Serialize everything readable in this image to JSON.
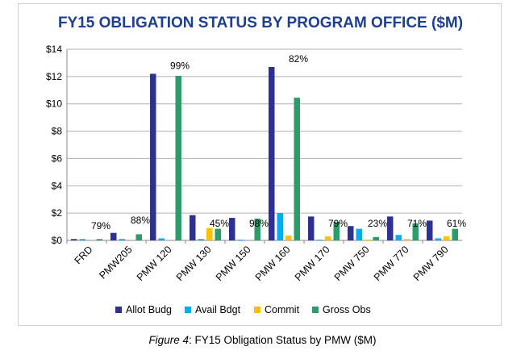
{
  "caption": {
    "figure": "Figure 4",
    "text": ": FY15 Obligation Status by PMW ($M)"
  },
  "colors": {
    "title": "#1f3f8f",
    "series": [
      "#2e3192",
      "#00aeef",
      "#ffc000",
      "#2e9c6a"
    ],
    "grid": "#b0b0b0"
  },
  "chart_data": {
    "type": "bar",
    "title": "FY15 OBLIGATION STATUS BY PROGRAM OFFICE  ($M)",
    "xlabel": "",
    "ylabel": "",
    "ylim": [
      0,
      14
    ],
    "y_ticks": [
      0,
      2,
      4,
      6,
      8,
      10,
      12,
      14
    ],
    "y_tick_labels": [
      "$0",
      "$2",
      "$4",
      "$6",
      "$8",
      "$10",
      "$12",
      "$14"
    ],
    "grid": true,
    "legend_position": "bottom",
    "categories": [
      "FRD",
      "PMW205",
      "PMW 120",
      "PMW 130",
      "PMW 150",
      "PMW 160",
      "PMW 170",
      "PMW 750",
      "PMW 770",
      "PMW 790"
    ],
    "series": [
      {
        "name": "Allot Budg",
        "values": [
          0.1,
          0.55,
          12.2,
          1.85,
          1.65,
          12.7,
          1.75,
          1.05,
          1.75,
          1.45
        ]
      },
      {
        "name": "Avail Bdgt",
        "values": [
          0.1,
          0.1,
          0.15,
          0.1,
          0.05,
          2.0,
          0.05,
          0.85,
          0.4,
          0.15
        ]
      },
      {
        "name": "Commit",
        "values": [
          0.0,
          0.0,
          0.0,
          0.9,
          0.0,
          0.35,
          0.3,
          0.05,
          0.1,
          0.3
        ]
      },
      {
        "name": "Gross Obs",
        "values": [
          0.1,
          0.45,
          12.05,
          0.85,
          1.6,
          10.45,
          1.35,
          0.25,
          1.25,
          0.85
        ]
      }
    ],
    "annotations": [
      "79%",
      "88%",
      "99%",
      "45%",
      "98%",
      "82%",
      "79%",
      "23%",
      "71%",
      "61%"
    ]
  }
}
